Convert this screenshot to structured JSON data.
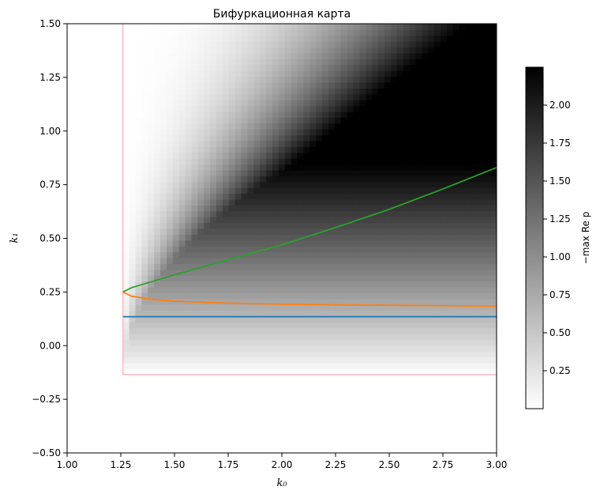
{
  "chart_data": {
    "type": "heatmap",
    "title": "Бифуркационная карта",
    "xlabel": "k₀",
    "ylabel": "k₁",
    "xlim": [
      1.0,
      3.0
    ],
    "ylim": [
      -0.5,
      1.5
    ],
    "x_ticks": [
      1.0,
      1.25,
      1.5,
      1.75,
      2.0,
      2.25,
      2.5,
      2.75,
      3.0
    ],
    "x_tick_labels": [
      "1.00",
      "1.25",
      "1.50",
      "1.75",
      "2.00",
      "2.25",
      "2.50",
      "2.75",
      "3.00"
    ],
    "y_ticks": [
      -0.5,
      -0.25,
      0.0,
      0.25,
      0.5,
      0.75,
      1.0,
      1.25,
      1.5
    ],
    "y_tick_labels": [
      "−0.50",
      "−0.25",
      "0.00",
      "0.25",
      "0.50",
      "0.75",
      "1.00",
      "1.25",
      "1.50"
    ],
    "heatmap": {
      "colormap": "white-to-black",
      "x_range": [
        1.26,
        3.0
      ],
      "y_range": [
        -0.135,
        1.5
      ],
      "description": "−max Re p over stability domain"
    },
    "domain_boundary": {
      "color": "#ffb6c1",
      "x_min": 1.26,
      "y_min": -0.135
    },
    "colorbar": {
      "label": "−max Re p",
      "range": [
        0.0,
        2.25
      ],
      "ticks": [
        0.25,
        0.5,
        0.75,
        1.0,
        1.25,
        1.5,
        1.75,
        2.0
      ],
      "tick_labels": [
        "0.25",
        "0.50",
        "0.75",
        "1.00",
        "1.25",
        "1.50",
        "1.75",
        "2.00"
      ]
    },
    "series": [
      {
        "color": "#1f77b4",
        "x": [
          1.26,
          3.0
        ],
        "y": [
          0.135,
          0.135
        ]
      },
      {
        "color": "#ff7f0e",
        "x": [
          1.26,
          1.3,
          1.4,
          1.5,
          1.75,
          2.0,
          2.25,
          2.5,
          2.75,
          3.0
        ],
        "y": [
          0.25,
          0.23,
          0.215,
          0.207,
          0.198,
          0.193,
          0.19,
          0.188,
          0.186,
          0.184
        ]
      },
      {
        "color": "#2ca02c",
        "x": [
          1.26,
          1.3,
          1.4,
          1.5,
          1.75,
          2.0,
          2.25,
          2.5,
          2.75,
          3.0
        ],
        "y": [
          0.25,
          0.27,
          0.3,
          0.33,
          0.4,
          0.47,
          0.55,
          0.635,
          0.73,
          0.83
        ]
      }
    ]
  }
}
